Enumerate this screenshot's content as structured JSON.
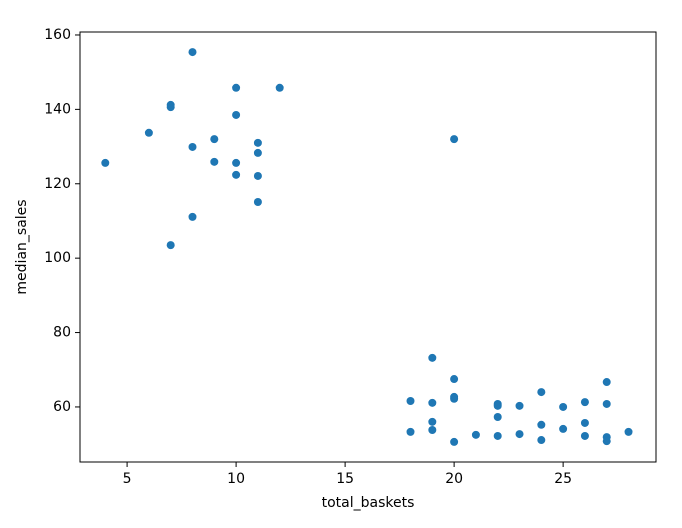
{
  "chart_data": {
    "type": "scatter",
    "x_label": "total_baskets",
    "y_label": "median_sales",
    "x": [
      4,
      6,
      7,
      7,
      7,
      8,
      8,
      8,
      9,
      9,
      10,
      10,
      10,
      10,
      11,
      11,
      11,
      11,
      12,
      20,
      18,
      18,
      19,
      19,
      19,
      19,
      20,
      20,
      20,
      20,
      21,
      22,
      22,
      22,
      22,
      23,
      23,
      24,
      24,
      24,
      25,
      25,
      26,
      26,
      26,
      27,
      27,
      27,
      27,
      28
    ],
    "values": [
      125.6,
      133.7,
      141.2,
      140.6,
      103.5,
      155.4,
      129.9,
      111.1,
      132.0,
      125.9,
      145.8,
      138.5,
      125.6,
      122.4,
      131.0,
      128.3,
      122.1,
      115.1,
      145.8,
      132.0,
      61.6,
      53.3,
      73.2,
      61.1,
      56.0,
      53.8,
      67.5,
      62.7,
      62.2,
      50.6,
      52.5,
      60.8,
      60.3,
      57.3,
      52.2,
      60.3,
      52.7,
      64.0,
      55.2,
      51.1,
      60.0,
      54.1,
      61.3,
      55.7,
      52.2,
      66.7,
      60.8,
      51.9,
      50.8,
      53.3
    ],
    "color": "#1f77b4",
    "xlim": [
      2.84,
      29.26
    ],
    "xticks": [
      5,
      10,
      15,
      20,
      25
    ],
    "ylim": [
      45.2,
      160.8
    ],
    "yticks": [
      60,
      80,
      100,
      120,
      140,
      160
    ],
    "grid": false
  }
}
